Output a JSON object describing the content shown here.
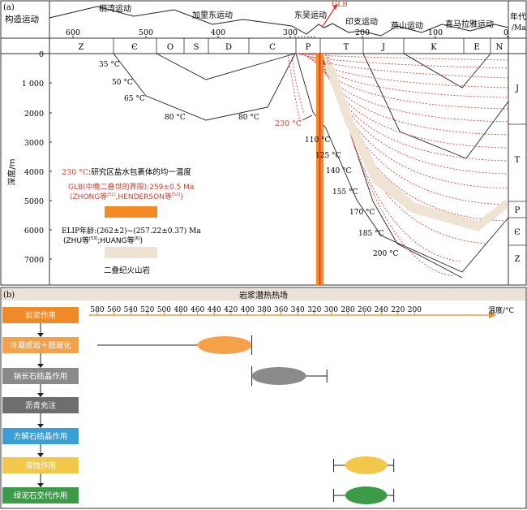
{
  "panel_a": {
    "label": "(a)",
    "tectonic_header": "构造运动",
    "era_header": "年代",
    "era_unit": "/Ma",
    "events": [
      "桐湾运动",
      "加里东运动",
      "东吴运动",
      "印支运动",
      "燕山运动",
      "喜马拉雅运动"
    ],
    "glb_label": "GLB",
    "age_ticks": [
      "600",
      "500",
      "400",
      "300",
      "200",
      "100",
      "0"
    ],
    "strata": [
      "Z",
      "Є",
      "O",
      "S",
      "D",
      "C",
      "P",
      "T",
      "J",
      "K",
      "E",
      "N"
    ],
    "depth_axis_label": "深度/m",
    "depth_ticks": [
      "0",
      "1 000",
      "2000",
      "3000",
      "4000",
      "5000",
      "6000",
      "7000"
    ],
    "isotherms_left": [
      "35 °C",
      "50 °C",
      "65 °C",
      "80 °C",
      "80 °C"
    ],
    "isotherm_red": "230 °C",
    "isotherms_right": [
      "110 °C",
      "125 °C",
      "140 °C",
      "155 °C",
      "170 °C",
      "185 °C",
      "200 °C"
    ],
    "right_column": [
      "J",
      "T",
      "P",
      "Є",
      "Z"
    ],
    "legend": {
      "item1_value": "230 °C",
      "item1_text": ":研究区盐水包裹体的均一温度",
      "item2_line1": "GLB(中晚二叠世的界限):259±0.5 Ma",
      "item2_line2": "(ZHONG等",
      "item2_sup1": "[51]",
      "item2_mid": ",HENDERSON等",
      "item2_sup2": "[52]",
      "item2_end": ")",
      "item3_line1": "ELIP年龄:(262±2)~(257.22±0.37) Ma",
      "item3_line2": "(ZHU等",
      "item3_sup1": "[53]",
      "item3_mid": ";HUANG等",
      "item3_sup2": "[6]",
      "item3_end": ")",
      "item4_text": "二叠纪火山岩"
    },
    "colors": {
      "orange": "#f28a25",
      "red": "#d93a2b",
      "beige": "#efe3d3",
      "isotherm": "#e0453a"
    }
  },
  "panel_b": {
    "label": "(b)",
    "header": "岩浆潜热热场",
    "temp_axis_label": "温度/°C",
    "temp_ticks": [
      "580",
      "560",
      "540",
      "520",
      "500",
      "480",
      "460",
      "440",
      "420",
      "400",
      "380",
      "360",
      "340",
      "320",
      "300",
      "280",
      "260",
      "240",
      "220",
      "200"
    ],
    "processes": [
      {
        "label": "岩浆作用",
        "color": "#f08a28",
        "range": null
      },
      {
        "label": "冷凝成岩＋脱玻化",
        "color": "#f5a14a",
        "range": [
          460,
          395
        ],
        "whisker_left": 580
      },
      {
        "label": "钠长石结晶作用",
        "color": "#8a8a8a",
        "range": [
          395,
          330
        ],
        "whisker_right": 305
      },
      {
        "label": "沥青充注",
        "color": "#6e6e6e",
        "range": null
      },
      {
        "label": "方解石结晶作用",
        "color": "#3a9fd6",
        "range": null
      },
      {
        "label": "溶蚀作用",
        "color": "#f2c84a",
        "range": [
          283,
          233
        ],
        "whisker_left": 297,
        "whisker_right": 225
      },
      {
        "label": "绿泥石交代作用",
        "color": "#3c9a48",
        "range": [
          283,
          233
        ],
        "whisker_left": 297,
        "whisker_right": 225
      }
    ]
  }
}
